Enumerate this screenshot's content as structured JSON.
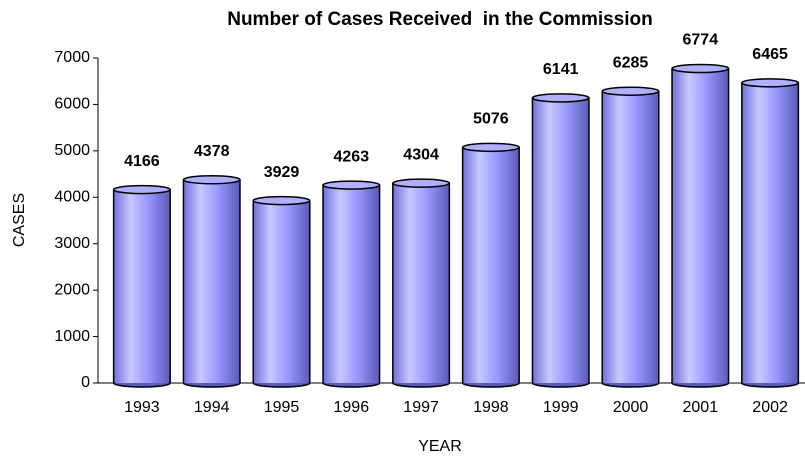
{
  "chart_data": {
    "type": "bar",
    "title": "Number of Cases Received  in the Commission",
    "x_label": "YEAR",
    "y_label": "CASES",
    "categories": [
      "1993",
      "1994",
      "1995",
      "1996",
      "1997",
      "1998",
      "1999",
      "2000",
      "2001",
      "2002"
    ],
    "values": [
      4166,
      4378,
      3929,
      4263,
      4304,
      5076,
      6141,
      6285,
      6774,
      6465
    ],
    "color": "#9999ff",
    "ylim": [
      0,
      7000
    ],
    "yticks": [
      0,
      1000,
      2000,
      3000,
      4000,
      5000,
      6000,
      7000
    ],
    "grid": false
  }
}
